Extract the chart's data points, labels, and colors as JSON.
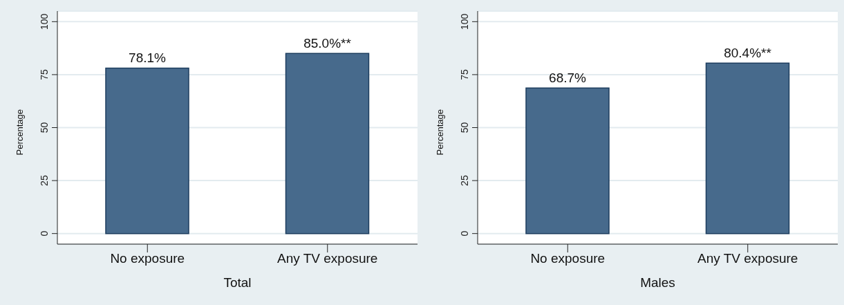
{
  "chart_data": [
    {
      "type": "bar",
      "xlabel": "Total",
      "ylabel": "Percentage",
      "categories": [
        "No exposure",
        "Any TV exposure"
      ],
      "values": [
        78.1,
        85.0
      ],
      "color": "#476a8c",
      "value_labels": [
        "78.1%",
        "85.0%**"
      ],
      "ylim": [
        -5,
        105
      ],
      "yticks": [
        0,
        25,
        50,
        75,
        100
      ],
      "grid": "y",
      "legend": false
    },
    {
      "type": "bar",
      "xlabel": "Males",
      "ylabel": "Percentage",
      "categories": [
        "No exposure",
        "Any TV exposure"
      ],
      "values": [
        68.7,
        80.4
      ],
      "color": "#476a8c",
      "value_labels": [
        "68.7%",
        "80.4%**"
      ],
      "ylim": [
        -5,
        105
      ],
      "yticks": [
        0,
        25,
        50,
        75,
        100
      ],
      "grid": "y",
      "legend": false
    }
  ]
}
